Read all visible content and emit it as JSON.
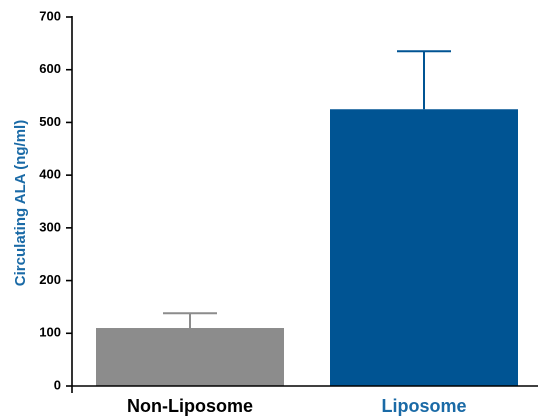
{
  "colors": {
    "non_liposome": "#8c8c8c",
    "liposome": "#005493",
    "axis": "#000000",
    "ylabel": "#1a6aa6"
  },
  "chart_data": {
    "type": "bar",
    "categories": [
      "Non-Liposome",
      "Liposome"
    ],
    "values": [
      110,
      525
    ],
    "errors": [
      28,
      110
    ],
    "bar_colors": [
      "#8c8c8c",
      "#005493"
    ],
    "category_label_colors": [
      "#000000",
      "#1a6aa6"
    ],
    "title": "",
    "xlabel": "",
    "ylabel": "Circulating ALA (ng/ml)",
    "ylim": [
      0,
      700
    ],
    "yticks": [
      0,
      100,
      200,
      300,
      400,
      500,
      600,
      700
    ],
    "grid": false
  }
}
